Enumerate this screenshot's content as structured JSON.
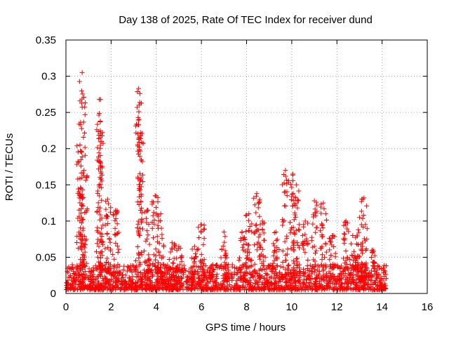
{
  "chart_data": {
    "type": "scatter",
    "title": "Day 138 of 2025, Rate Of TEC Index for receiver dund",
    "xlabel": "GPS time / hours",
    "ylabel": "ROTI / TECUs",
    "xlim": [
      0,
      16
    ],
    "ylim": [
      0,
      0.35
    ],
    "xticks": [
      0,
      2,
      4,
      6,
      8,
      10,
      12,
      14,
      16
    ],
    "xtick_labels": [
      "0",
      "2",
      "4",
      "6",
      "8",
      "10",
      "12",
      "14",
      "16"
    ],
    "yticks": [
      0,
      0.05,
      0.1,
      0.15,
      0.2,
      0.25,
      0.3,
      0.35
    ],
    "ytick_labels": [
      "0",
      "0.05",
      "0.1",
      "0.15",
      "0.2",
      "0.25",
      "0.3",
      "0.35"
    ],
    "grid": true,
    "marker": "+",
    "color": "#ff0000",
    "series": [
      {
        "name": "ROTI",
        "x_range": [
          0.0,
          14.2
        ],
        "baseline_band": [
          0.005,
          0.04
        ],
        "bursts": [
          {
            "x": 0.72,
            "peak": 0.305
          },
          {
            "x": 0.62,
            "peak": 0.205
          },
          {
            "x": 0.8,
            "peak": 0.17
          },
          {
            "x": 1.48,
            "peak": 0.268
          },
          {
            "x": 1.52,
            "peak": 0.238
          },
          {
            "x": 1.85,
            "peak": 0.13
          },
          {
            "x": 2.2,
            "peak": 0.115
          },
          {
            "x": 3.22,
            "peak": 0.283
          },
          {
            "x": 3.3,
            "peak": 0.222
          },
          {
            "x": 3.6,
            "peak": 0.115
          },
          {
            "x": 3.95,
            "peak": 0.135
          },
          {
            "x": 4.2,
            "peak": 0.11
          },
          {
            "x": 4.7,
            "peak": 0.07
          },
          {
            "x": 5.0,
            "peak": 0.065
          },
          {
            "x": 5.7,
            "peak": 0.065
          },
          {
            "x": 6.0,
            "peak": 0.095
          },
          {
            "x": 6.5,
            "peak": 0.04
          },
          {
            "x": 7.0,
            "peak": 0.085
          },
          {
            "x": 7.8,
            "peak": 0.085
          },
          {
            "x": 8.1,
            "peak": 0.11
          },
          {
            "x": 8.45,
            "peak": 0.138
          },
          {
            "x": 8.7,
            "peak": 0.1
          },
          {
            "x": 9.3,
            "peak": 0.085
          },
          {
            "x": 9.72,
            "peak": 0.17
          },
          {
            "x": 10.05,
            "peak": 0.165
          },
          {
            "x": 10.2,
            "peak": 0.15
          },
          {
            "x": 10.6,
            "peak": 0.1
          },
          {
            "x": 11.0,
            "peak": 0.128
          },
          {
            "x": 11.4,
            "peak": 0.125
          },
          {
            "x": 11.8,
            "peak": 0.08
          },
          {
            "x": 12.4,
            "peak": 0.1
          },
          {
            "x": 12.7,
            "peak": 0.08
          },
          {
            "x": 13.0,
            "peak": 0.105
          },
          {
            "x": 13.2,
            "peak": 0.132
          },
          {
            "x": 13.6,
            "peak": 0.06
          }
        ]
      }
    ]
  }
}
